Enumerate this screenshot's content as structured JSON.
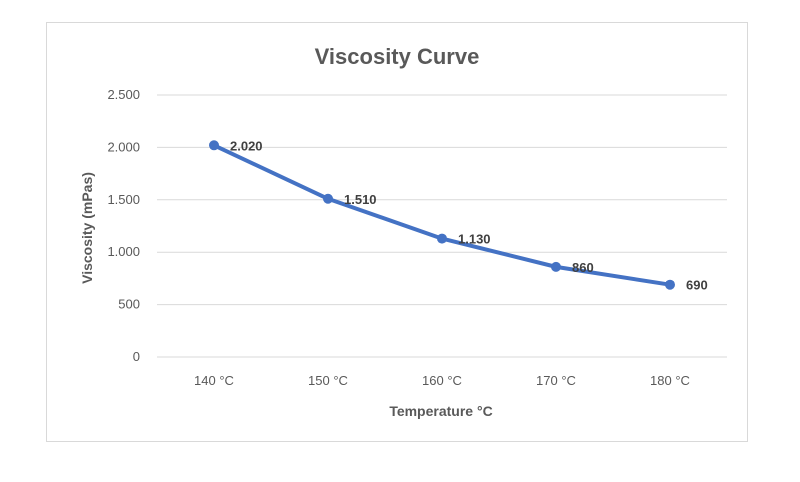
{
  "chart_data": {
    "type": "line",
    "title": "Viscosity Curve",
    "xlabel": "Temperature °C",
    "ylabel": "Viscosity (mPas)",
    "categories": [
      "140 °C",
      "150 °C",
      "160 °C",
      "170 °C",
      "180 °C"
    ],
    "series": [
      {
        "values": [
          2020,
          1510,
          1130,
          860,
          690
        ],
        "color": "#4472c4"
      }
    ],
    "data_labels": [
      "2.020",
      "1.510",
      "1.130",
      "860",
      "690"
    ],
    "ylim": [
      0,
      2500
    ],
    "yticks": [
      0,
      500,
      1000,
      1500,
      2000,
      2500
    ],
    "ytick_labels": [
      "0",
      "500",
      "1.000",
      "1.500",
      "2.000",
      "2.500"
    ],
    "grid": true,
    "legend": "none",
    "colors": {
      "gridline": "#d9d9d9",
      "text": "#595959",
      "line": "#4472c4"
    }
  }
}
